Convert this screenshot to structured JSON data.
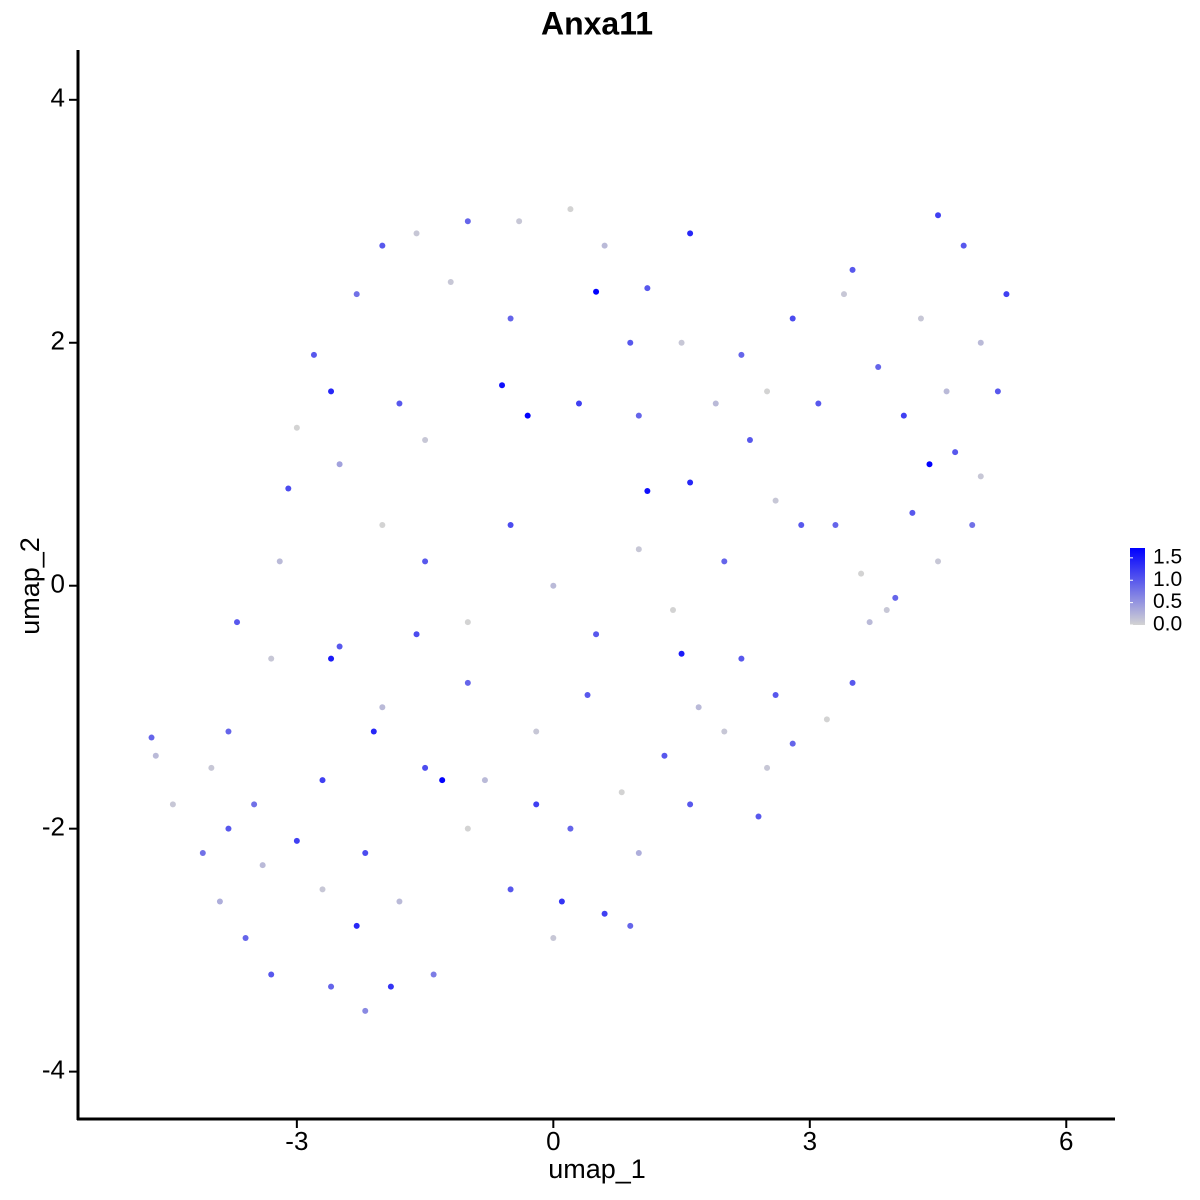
{
  "chart_data": {
    "type": "scatter",
    "title": "Anxa11",
    "x_label": "umap_1",
    "y_label": "umap_2",
    "xlim": [
      -5.56,
      6.57
    ],
    "ylim": [
      -4.39,
      4.41
    ],
    "xticks": [
      -3,
      0,
      3,
      6
    ],
    "yticks": [
      -4,
      -2,
      0,
      2,
      4
    ],
    "color_low": "#d3d3d3",
    "color_high": "#0000ff",
    "color_lim": [
      0,
      1.72
    ],
    "color_ticks": [
      {
        "value": 0,
        "label": "0.0"
      },
      0.5,
      {
        "value": 1,
        "label": "1.0"
      },
      1.5
    ],
    "x": [
      -4.7,
      -4.65,
      -4.45,
      -4.1,
      -3.9,
      -3.6,
      -3.3,
      -2.6,
      -2.2,
      -1.9,
      -1.4,
      -3.5,
      -3.0,
      -2.7,
      -2.3,
      -1.8,
      -3.8,
      -3.3,
      -3.7,
      -3.2,
      -3.1,
      -3.0,
      -2.8,
      -2.3,
      -2.0,
      -1.6,
      -1.0,
      -0.4,
      0.2,
      0.6,
      1.6,
      1.1,
      0.5,
      -0.6,
      -0.3,
      0.3,
      1.1,
      -2.5,
      -2.0,
      -1.5,
      -1.0,
      -0.5,
      0.0,
      0.5,
      1.0,
      -2.5,
      -2.0,
      -1.5,
      -1.3,
      -1.0,
      -0.5,
      0.0,
      0.6,
      0.2,
      0.8,
      1.3,
      1.7,
      1.5,
      2.2,
      2.5,
      2.4,
      -2.1,
      -1.0,
      -0.2,
      0.4,
      1.0,
      1.6,
      2.0,
      2.8,
      3.2,
      3.5,
      3.7,
      4.0,
      4.5,
      4.9,
      5.0,
      5.2,
      5.3,
      4.8,
      4.5,
      4.3,
      4.4,
      4.1,
      3.8,
      3.4,
      3.5,
      2.8,
      2.2,
      1.9,
      2.3,
      2.6,
      2.9,
      3.3,
      3.6,
      4.2,
      4.6,
      2.0,
      1.6,
      1.0,
      1.5,
      0.9,
      -0.5,
      -1.2,
      -1.8,
      -1.5,
      -2.6,
      -2.6,
      -2.7,
      -2.2,
      -3.4,
      -3.8,
      -4.0,
      -1.6,
      -0.8,
      0.9,
      0.1,
      -0.2,
      1.4,
      2.6,
      3.9,
      4.7,
      5.0,
      3.1,
      2.5
    ],
    "y": [
      -1.25,
      -1.4,
      -1.8,
      -2.2,
      -2.6,
      -2.9,
      -3.2,
      -3.3,
      -3.5,
      -3.3,
      -3.2,
      -1.8,
      -2.1,
      -2.5,
      -2.8,
      -2.6,
      -1.2,
      -0.6,
      -0.3,
      0.2,
      0.8,
      1.3,
      1.9,
      2.4,
      2.8,
      2.9,
      3.0,
      3.0,
      3.1,
      2.8,
      2.9,
      2.45,
      2.42,
      1.65,
      1.4,
      1.5,
      0.78,
      1.0,
      0.5,
      0.2,
      -0.3,
      0.5,
      0.0,
      -0.4,
      0.3,
      -0.5,
      -1.0,
      -1.5,
      -1.6,
      -2.0,
      -2.5,
      -2.9,
      -2.7,
      -2.0,
      -1.7,
      -1.4,
      -1.0,
      -0.56,
      -0.6,
      -1.5,
      -1.9,
      -1.2,
      -0.8,
      -1.2,
      -0.9,
      -2.2,
      -1.8,
      -1.2,
      -1.3,
      -1.1,
      -0.8,
      -0.3,
      -0.1,
      0.2,
      0.5,
      0.9,
      1.6,
      2.4,
      2.8,
      3.05,
      2.2,
      1.0,
      1.4,
      1.8,
      2.4,
      2.6,
      2.2,
      1.9,
      1.5,
      1.2,
      0.7,
      0.5,
      0.5,
      0.1,
      0.6,
      1.6,
      0.2,
      0.85,
      1.4,
      2.0,
      2.0,
      2.2,
      2.5,
      1.5,
      1.2,
      1.6,
      -0.6,
      -1.6,
      -2.2,
      -2.3,
      -2.0,
      -1.5,
      -0.4,
      -1.6,
      -2.8,
      -2.6,
      -1.8,
      -0.2,
      -0.9,
      -0.2,
      1.1,
      2.0,
      1.5,
      1.6
    ],
    "values": [
      0.9,
      0.2,
      0.1,
      0.8,
      0.3,
      0.9,
      1.0,
      0.9,
      0.6,
      1.3,
      0.7,
      0.8,
      1.2,
      0.1,
      1.4,
      0.2,
      0.9,
      0.1,
      1.0,
      0.2,
      1.1,
      0.0,
      1.0,
      0.8,
      1.0,
      0.1,
      0.9,
      0.1,
      0.0,
      0.2,
      1.4,
      1.0,
      1.7,
      1.6,
      1.7,
      1.2,
      1.6,
      0.4,
      0.0,
      1.0,
      0.0,
      1.1,
      0.2,
      1.0,
      0.1,
      1.0,
      0.2,
      1.1,
      1.7,
      0.0,
      1.0,
      0.1,
      1.2,
      0.9,
      0.0,
      1.0,
      0.2,
      1.5,
      1.0,
      0.1,
      1.0,
      1.4,
      0.9,
      0.1,
      1.0,
      0.3,
      1.0,
      0.1,
      0.9,
      0.0,
      1.0,
      0.2,
      0.9,
      0.1,
      0.8,
      0.1,
      1.0,
      1.2,
      1.0,
      1.2,
      0.1,
      1.7,
      1.2,
      0.9,
      0.1,
      1.0,
      1.1,
      0.9,
      0.2,
      1.0,
      0.1,
      1.0,
      0.9,
      0.0,
      1.0,
      0.2,
      0.9,
      1.4,
      0.9,
      0.1,
      1.0,
      0.9,
      0.1,
      1.0,
      0.1,
      1.4,
      1.5,
      1.2,
      1.1,
      0.2,
      1.0,
      0.1,
      1.1,
      0.2,
      0.9,
      1.3,
      1.2,
      0.0,
      1.0,
      0.1,
      1.0,
      0.2,
      1.0,
      0.0
    ]
  }
}
